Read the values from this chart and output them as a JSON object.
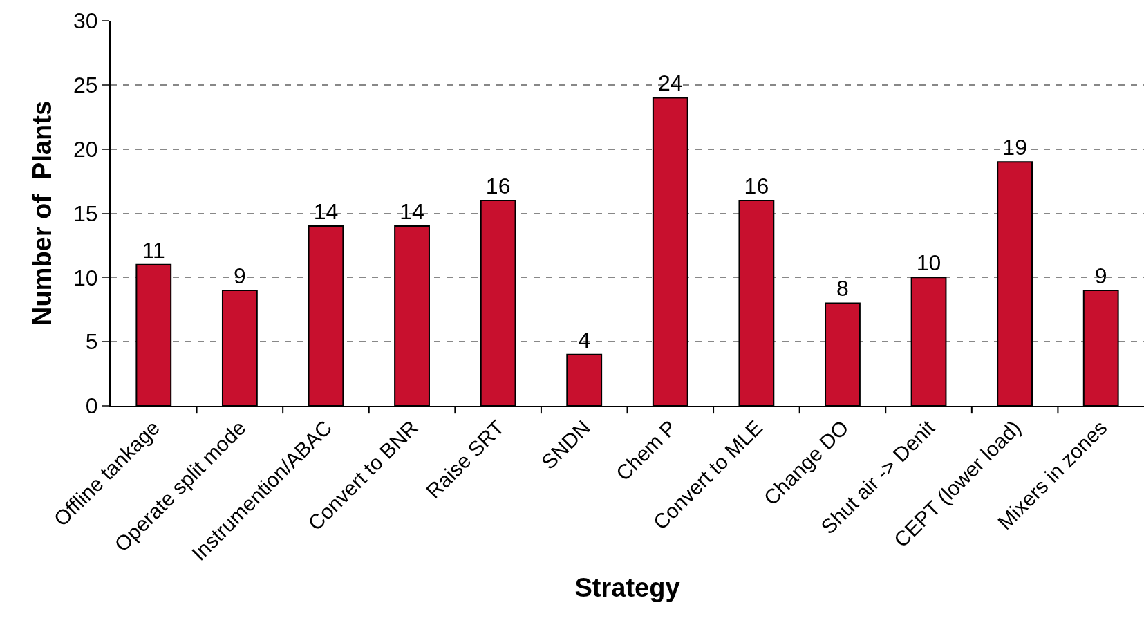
{
  "chart_data": {
    "type": "bar",
    "xlabel": "Strategy",
    "ylabel": "Number of  Plants",
    "categories": [
      "Offline tankage",
      "Operate split mode",
      "Instrumention/ABAC",
      "Convert to BNR",
      "Raise SRT",
      "SNDN",
      "Chem P",
      "Convert to MLE",
      "Change DO",
      "Shut air -> Denit",
      "CEPT (lower load)",
      "Mixers in zones"
    ],
    "values": [
      11,
      9,
      14,
      14,
      16,
      4,
      24,
      16,
      8,
      10,
      19,
      9
    ],
    "color": "#c8102e",
    "ylim": [
      0,
      30
    ],
    "yticks": [
      0,
      5,
      10,
      15,
      20,
      25,
      30
    ],
    "grid": "y",
    "data_labels": true
  }
}
